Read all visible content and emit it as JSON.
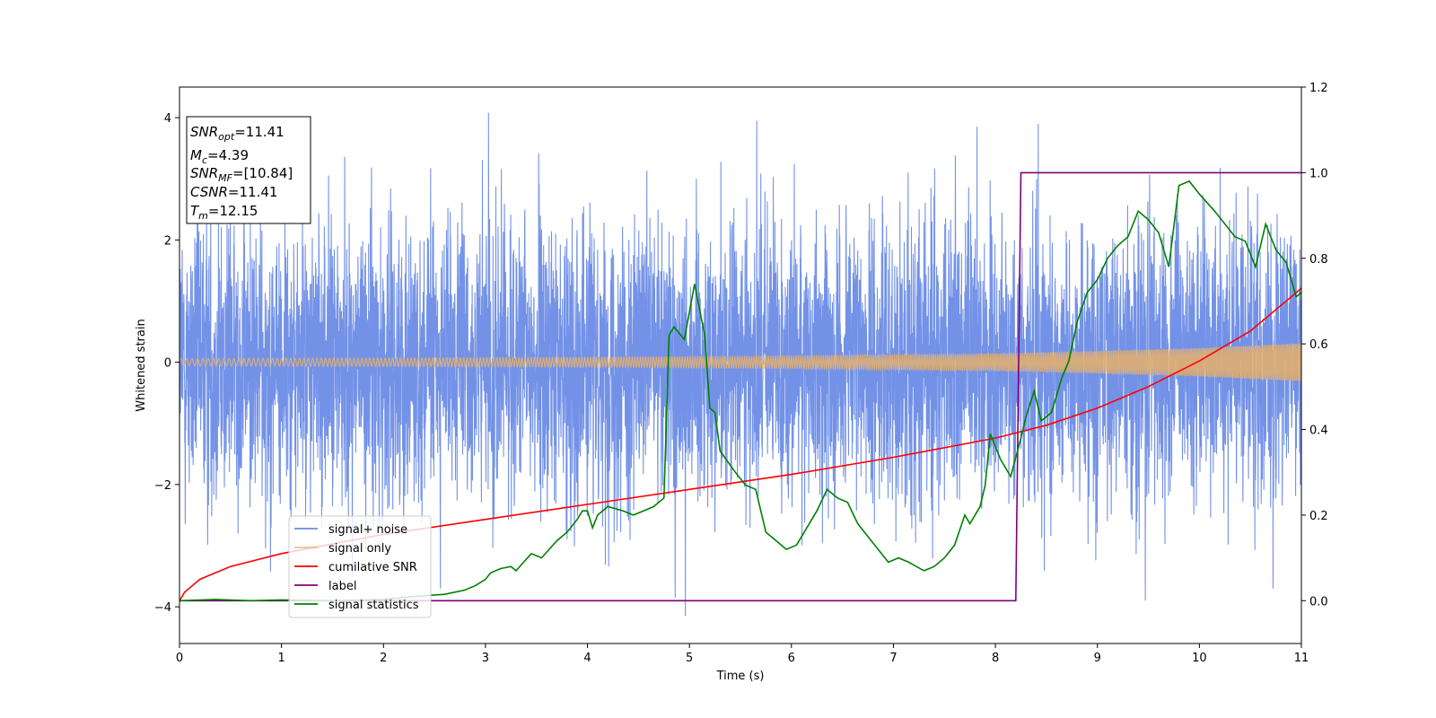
{
  "chart_data": {
    "type": "line",
    "title": "",
    "xlabel": "Time (s)",
    "ylabel": "Whitened strain",
    "ylabel_right": "",
    "xlim": [
      0,
      11
    ],
    "ylim": [
      -4.6,
      4.5
    ],
    "ylim_right": [
      -0.1,
      1.2
    ],
    "xticks": [
      "0",
      "1",
      "2",
      "3",
      "4",
      "5",
      "6",
      "7",
      "8",
      "9",
      "10",
      "11"
    ],
    "yticks": [
      "−4",
      "−2",
      "0",
      "2",
      "4"
    ],
    "yticks_right": [
      "0.0",
      "0.2",
      "0.4",
      "0.6",
      "0.8",
      "1.0",
      "1.2"
    ],
    "grid": false,
    "legend_position": "lower-left",
    "info_box": {
      "position": "top-left",
      "lines": [
        {
          "name": "SNR",
          "sub": "opt",
          "value": "=11.41"
        },
        {
          "name": "M",
          "sub": "c",
          "value": "=4.39"
        },
        {
          "name": "SNR",
          "sub": "MF",
          "value": "=[10.84]"
        },
        {
          "name": "CSNR",
          "sub": "",
          "value": "=11.41"
        },
        {
          "name": "T",
          "sub": "m",
          "value": "=12.15"
        }
      ]
    },
    "series": [
      {
        "name": "signal+ noise",
        "axis": "left",
        "color": "#6b8ce6",
        "kind": "noise",
        "amplitude_std": 1.15,
        "duration": 11,
        "extremes": [
          [
            3.03,
            4.08
          ],
          [
            4.96,
            -4.15
          ],
          [
            4.86,
            -3.85
          ],
          [
            5.66,
            3.95
          ],
          [
            7.82,
            3.85
          ],
          [
            8.42,
            3.9
          ],
          [
            9.47,
            -3.9
          ]
        ]
      },
      {
        "name": "signal only",
        "axis": "left",
        "color": "#e8b06a",
        "kind": "chirp",
        "envelope": {
          "x": [
            0,
            2,
            4,
            6,
            8,
            9,
            10,
            11
          ],
          "y": [
            0.06,
            0.07,
            0.08,
            0.1,
            0.14,
            0.18,
            0.23,
            0.31
          ]
        }
      },
      {
        "name": "cumilative SNR",
        "axis": "right",
        "color": "#ff0000",
        "x": [
          0,
          0.05,
          0.2,
          0.5,
          1,
          2,
          3,
          4,
          5,
          6,
          7,
          8,
          8.5,
          9,
          9.5,
          10,
          10.5,
          11
        ],
        "y": [
          0.0,
          0.02,
          0.05,
          0.08,
          0.11,
          0.155,
          0.19,
          0.225,
          0.26,
          0.295,
          0.335,
          0.38,
          0.41,
          0.45,
          0.5,
          0.56,
          0.63,
          0.73
        ]
      },
      {
        "name": "label",
        "axis": "right",
        "color": "#800080",
        "x": [
          0,
          8.2,
          8.25,
          11
        ],
        "y": [
          0,
          0,
          1,
          1
        ]
      },
      {
        "name": "signal statistics",
        "axis": "right",
        "color": "#008000",
        "x": [
          0,
          0.35,
          0.7,
          1.0,
          1.5,
          2.0,
          2.3,
          2.6,
          2.8,
          2.9,
          3.0,
          3.05,
          3.15,
          3.25,
          3.3,
          3.45,
          3.55,
          3.7,
          3.8,
          3.9,
          3.95,
          4.0,
          4.05,
          4.1,
          4.2,
          4.35,
          4.45,
          4.55,
          4.65,
          4.75,
          4.8,
          4.85,
          4.95,
          5.05,
          5.15,
          5.2,
          5.25,
          5.3,
          5.45,
          5.55,
          5.65,
          5.75,
          5.85,
          5.95,
          6.05,
          6.15,
          6.25,
          6.35,
          6.45,
          6.55,
          6.65,
          6.75,
          6.85,
          6.95,
          7.05,
          7.15,
          7.3,
          7.4,
          7.5,
          7.6,
          7.7,
          7.75,
          7.85,
          7.9,
          7.95,
          8.05,
          8.15,
          8.25,
          8.3,
          8.38,
          8.45,
          8.55,
          8.65,
          8.72,
          8.8,
          8.9,
          9.0,
          9.1,
          9.2,
          9.3,
          9.4,
          9.5,
          9.6,
          9.7,
          9.8,
          9.9,
          10.0,
          10.15,
          10.25,
          10.35,
          10.45,
          10.55,
          10.65,
          10.75,
          10.85,
          10.95,
          11.0
        ],
        "y": [
          0.0,
          0.003,
          0.0,
          0.002,
          0.0,
          0.003,
          0.01,
          0.015,
          0.025,
          0.035,
          0.05,
          0.065,
          0.075,
          0.08,
          0.07,
          0.11,
          0.1,
          0.14,
          0.16,
          0.19,
          0.21,
          0.21,
          0.17,
          0.2,
          0.22,
          0.21,
          0.2,
          0.21,
          0.22,
          0.24,
          0.62,
          0.64,
          0.61,
          0.74,
          0.62,
          0.45,
          0.44,
          0.35,
          0.3,
          0.27,
          0.26,
          0.16,
          0.14,
          0.12,
          0.13,
          0.17,
          0.21,
          0.26,
          0.24,
          0.23,
          0.18,
          0.15,
          0.12,
          0.09,
          0.1,
          0.09,
          0.07,
          0.08,
          0.1,
          0.13,
          0.2,
          0.18,
          0.22,
          0.27,
          0.39,
          0.33,
          0.29,
          0.38,
          0.43,
          0.49,
          0.42,
          0.44,
          0.52,
          0.56,
          0.65,
          0.72,
          0.75,
          0.8,
          0.83,
          0.85,
          0.91,
          0.89,
          0.86,
          0.78,
          0.97,
          0.98,
          0.95,
          0.91,
          0.88,
          0.85,
          0.84,
          0.78,
          0.88,
          0.82,
          0.79,
          0.71,
          0.72
        ]
      }
    ]
  }
}
